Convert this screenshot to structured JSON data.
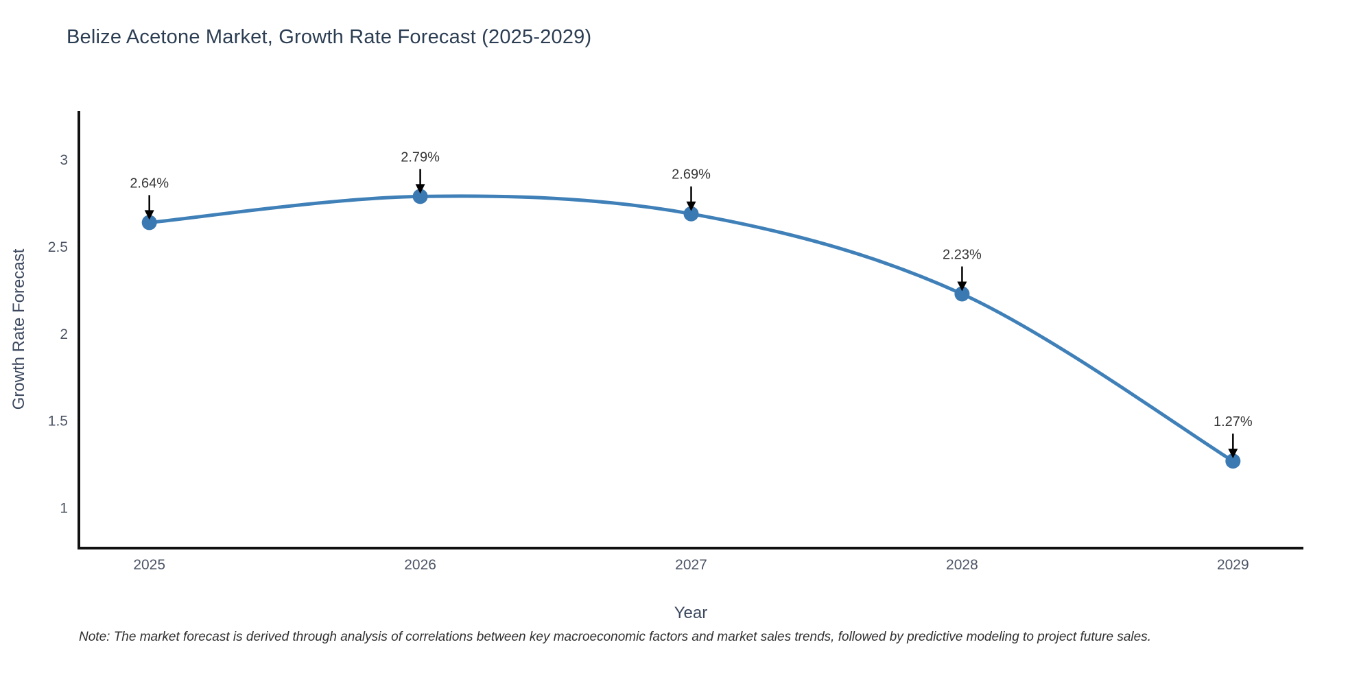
{
  "page": {
    "background": "#ffffff"
  },
  "header": {
    "title": "Belize Acetone Market, Growth Rate Forecast (2025-2029)"
  },
  "footer": {
    "note": "Note: The market forecast is derived through analysis of correlations between key macroeconomic factors and market sales trends, followed by predictive modeling to project future sales."
  },
  "chart_data": {
    "type": "line",
    "title": "Belize Acetone Market, Growth Rate Forecast (2025-2029)",
    "xlabel": "Year",
    "ylabel": "Growth Rate Forecast",
    "x": [
      2025,
      2026,
      2027,
      2028,
      2029
    ],
    "values": [
      2.64,
      2.79,
      2.69,
      2.23,
      1.27
    ],
    "point_labels": [
      "2.64%",
      "2.79%",
      "2.69%",
      "2.23%",
      "1.27%"
    ],
    "xticks": [
      2025,
      2026,
      2027,
      2028,
      2029
    ],
    "xtick_labels": [
      "2025",
      "2026",
      "2027",
      "2028",
      "2029"
    ],
    "yticks": [
      1,
      1.5,
      2,
      2.5,
      3
    ],
    "ytick_labels": [
      "1",
      "1.5",
      "2",
      "2.5",
      "3"
    ],
    "xlim": [
      2024.74,
      2029.26
    ],
    "ylim": [
      0.77,
      3.28
    ],
    "grid": false,
    "line_shape": "spline",
    "legend": "none",
    "colors": {
      "line": "#4080b8",
      "marker": "#3a79b2",
      "axis": "#111111",
      "tick_label": "#4c5566",
      "title": "#2b3d52",
      "annotation_text": "#333333",
      "arrow": "#000000",
      "background": "#ffffff"
    }
  }
}
